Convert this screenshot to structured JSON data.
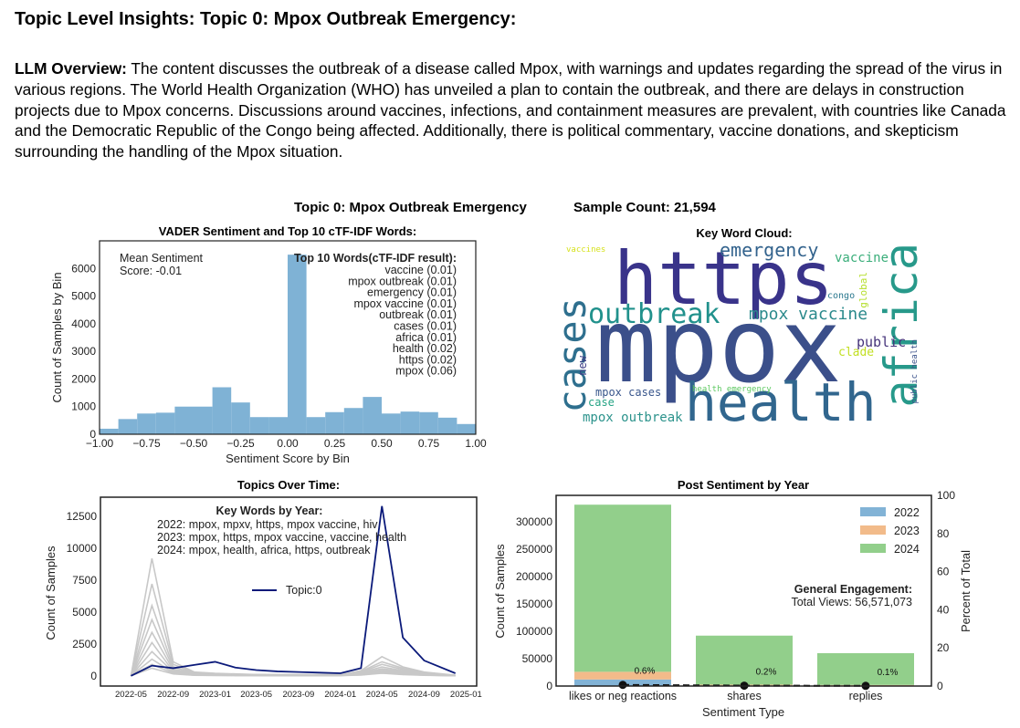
{
  "page": {
    "heading": "Topic Level Insights: Topic 0: Mpox Outbreak Emergency:",
    "overview_label": "LLM Overview:",
    "overview_text": "The content discusses the outbreak of a disease called Mpox, with warnings and updates regarding the spread of the virus in various regions. The World Health Organization (WHO) has unveiled a plan to contain the outbreak, and there are delays in construction projects due to Mpox concerns. Discussions around vaccines, infections, and containment measures are prevalent, with countries like Canada and the Democratic Republic of the Congo being affected. Additionally, there is political commentary, vaccine donations, and skepticism surrounding the handling of the Mpox situation.",
    "figure_title": "Topic 0: Mpox Outbreak Emergency",
    "sample_count": "Sample Count: 21,594"
  },
  "colors": {
    "hist": "#7fb2d5",
    "topic_line": "#0b1a7a",
    "bg_lines": "#c8c8c8",
    "y2022": "#82b3d6",
    "y2023": "#f2bb8a",
    "y2024": "#92cf8b"
  },
  "chart_data": [
    {
      "type": "bar",
      "title": "VADER Sentiment and Top 10 cTF-IDF Words:",
      "xlabel": "Sentiment Score by Bin",
      "ylabel": "Count of Samples by Bin",
      "xlim": [
        -1.0,
        1.0
      ],
      "ylim": [
        0,
        7000
      ],
      "x_ticks": [
        "−1.00",
        "−0.75",
        "−0.50",
        "−0.25",
        "0.00",
        "0.25",
        "0.50",
        "0.75",
        "1.00"
      ],
      "y_ticks": [
        "0",
        "1000",
        "2000",
        "3000",
        "4000",
        "5000",
        "6000"
      ],
      "bins": [
        {
          "x0": -1.0,
          "x1": -0.9,
          "y": 200
        },
        {
          "x0": -0.9,
          "x1": -0.8,
          "y": 550
        },
        {
          "x0": -0.8,
          "x1": -0.7,
          "y": 750
        },
        {
          "x0": -0.7,
          "x1": -0.6,
          "y": 780
        },
        {
          "x0": -0.6,
          "x1": -0.5,
          "y": 1000
        },
        {
          "x0": -0.5,
          "x1": -0.4,
          "y": 1000
        },
        {
          "x0": -0.4,
          "x1": -0.3,
          "y": 1700
        },
        {
          "x0": -0.3,
          "x1": -0.2,
          "y": 1150
        },
        {
          "x0": -0.2,
          "x1": -0.1,
          "y": 620
        },
        {
          "x0": -0.1,
          "x1": 0.0,
          "y": 620
        },
        {
          "x0": 0.0,
          "x1": 0.1,
          "y": 6500
        },
        {
          "x0": 0.1,
          "x1": 0.2,
          "y": 620
        },
        {
          "x0": 0.2,
          "x1": 0.3,
          "y": 800
        },
        {
          "x0": 0.3,
          "x1": 0.4,
          "y": 950
        },
        {
          "x0": 0.4,
          "x1": 0.5,
          "y": 1350
        },
        {
          "x0": 0.5,
          "x1": 0.6,
          "y": 750
        },
        {
          "x0": 0.6,
          "x1": 0.7,
          "y": 820
        },
        {
          "x0": 0.7,
          "x1": 0.8,
          "y": 800
        },
        {
          "x0": 0.8,
          "x1": 0.9,
          "y": 600
        },
        {
          "x0": 0.9,
          "x1": 1.0,
          "y": 370
        }
      ],
      "annotation": [
        "Mean Sentiment",
        "Score: -0.01"
      ],
      "words_title": "Top 10 Words(cTF-IDF result):",
      "words": [
        "vaccine (0.01)",
        "mpox outbreak (0.01)",
        "emergency (0.01)",
        "mpox vaccine (0.01)",
        "outbreak (0.01)",
        "cases (0.01)",
        "africa (0.01)",
        "health (0.02)",
        "https (0.02)",
        "mpox (0.06)"
      ]
    },
    {
      "type": "wordcloud",
      "title": "Key Word Cloud:",
      "words": [
        {
          "text": "mpox",
          "color": "#3b4f8a"
        },
        {
          "text": "https",
          "color": "#39338a"
        },
        {
          "text": "health",
          "color": "#31668e"
        },
        {
          "text": "africa",
          "color": "#27998a"
        },
        {
          "text": "cases",
          "color": "#2e6f8e"
        },
        {
          "text": "outbreak",
          "color": "#21918c"
        },
        {
          "text": "emergency",
          "color": "#33638d"
        },
        {
          "text": "mpox vaccine",
          "color": "#2b8a8c"
        },
        {
          "text": "vaccine",
          "color": "#3aae7a"
        },
        {
          "text": "public",
          "color": "#45337a"
        },
        {
          "text": "clade",
          "color": "#c2df23"
        },
        {
          "text": "mpox cases",
          "color": "#39568c"
        },
        {
          "text": "case",
          "color": "#26a485"
        },
        {
          "text": "mpox outbreak",
          "color": "#2c938c"
        },
        {
          "text": "new",
          "color": "#3b3c86"
        },
        {
          "text": "vaccines",
          "color": "#d6e21c"
        },
        {
          "text": "congo",
          "color": "#2a788e"
        },
        {
          "text": "global",
          "color": "#b5de2b"
        },
        {
          "text": "health emergency",
          "color": "#5ec962"
        },
        {
          "text": "public health",
          "color": "#3b528b"
        }
      ]
    },
    {
      "type": "line",
      "title": "Topics Over Time:",
      "xlabel": "",
      "ylabel": "Count of Samples",
      "ylim": [
        -800,
        14000
      ],
      "x": [
        "2022-05",
        "2022-07",
        "2022-09",
        "2022-11",
        "2023-01",
        "2023-03",
        "2023-05",
        "2023-07",
        "2023-09",
        "2023-11",
        "2024-01",
        "2024-03",
        "2024-05",
        "2024-07",
        "2024-09",
        "2024-12"
      ],
      "x_ticks": [
        "2022-05",
        "2022-09",
        "2023-01",
        "2023-05",
        "2023-09",
        "2024-01",
        "2024-05",
        "2024-09",
        "2025-01"
      ],
      "y_ticks": [
        "0",
        "2500",
        "5000",
        "7500",
        "10000",
        "12500"
      ],
      "series": [
        {
          "name": "Topic:0",
          "values": [
            0,
            800,
            600,
            850,
            1100,
            650,
            450,
            350,
            300,
            250,
            200,
            600,
            13300,
            3000,
            1200,
            200
          ]
        }
      ],
      "background_series": [
        [
          0,
          9200,
          1100,
          300,
          200,
          150,
          100,
          100,
          100,
          100,
          100,
          400,
          1500,
          700,
          300,
          50
        ],
        [
          0,
          7200,
          900,
          250,
          150,
          120,
          100,
          90,
          80,
          80,
          90,
          350,
          1100,
          600,
          250,
          40
        ],
        [
          0,
          5500,
          700,
          200,
          120,
          100,
          80,
          70,
          70,
          70,
          80,
          300,
          900,
          500,
          200,
          30
        ],
        [
          0,
          4400,
          550,
          150,
          100,
          80,
          70,
          60,
          60,
          60,
          70,
          250,
          700,
          400,
          150,
          30
        ],
        [
          0,
          3400,
          450,
          120,
          80,
          70,
          60,
          50,
          50,
          50,
          60,
          200,
          550,
          350,
          120,
          20
        ],
        [
          0,
          2600,
          350,
          100,
          70,
          60,
          50,
          40,
          40,
          40,
          50,
          150,
          450,
          300,
          100,
          20
        ],
        [
          0,
          1900,
          300,
          80,
          60,
          50,
          40,
          30,
          30,
          30,
          40,
          120,
          350,
          250,
          80,
          10
        ],
        [
          0,
          1300,
          250,
          60,
          50,
          40,
          30,
          30,
          30,
          30,
          30,
          100,
          300,
          200,
          60,
          10
        ],
        [
          0,
          900,
          200,
          50,
          40,
          30,
          30,
          20,
          20,
          20,
          30,
          80,
          250,
          150,
          50,
          10
        ],
        [
          0,
          600,
          150,
          40,
          30,
          20,
          20,
          20,
          20,
          20,
          20,
          60,
          200,
          100,
          40,
          10
        ]
      ],
      "legend_position": "center",
      "annotation_title": "Key Words by Year:",
      "annotation_lines": [
        "2022: mpox, mpxv, https, mpox vaccine, hiv",
        "2023: mpox, https, mpox vaccine, vaccine, health",
        "2024: mpox, health, africa, https, outbreak"
      ]
    },
    {
      "type": "bar",
      "stacked": true,
      "title": "Post Sentiment by Year",
      "xlabel": "Sentiment Type",
      "ylabel": "Count of Samples",
      "y2label": "Percent of Total",
      "categories": [
        "likes or neg reactions",
        "shares",
        "replies"
      ],
      "ylim": [
        0,
        348000
      ],
      "y2lim": [
        0,
        100
      ],
      "y_ticks": [
        "0",
        "50000",
        "100000",
        "150000",
        "200000",
        "250000",
        "300000"
      ],
      "y2_ticks": [
        "0",
        "20",
        "40",
        "60",
        "80",
        "100"
      ],
      "series": [
        {
          "name": "2022",
          "values": [
            12000,
            1000,
            800
          ]
        },
        {
          "name": "2023",
          "values": [
            14000,
            1500,
            1200
          ]
        },
        {
          "name": "2024",
          "values": [
            305000,
            89500,
            58000
          ]
        }
      ],
      "percent_labels": [
        "0.6%",
        "0.2%",
        "0.1%"
      ],
      "percent_values": [
        0.6,
        0.2,
        0.1
      ],
      "legend_position": "top-right",
      "engagement_title": "General Engagement:",
      "engagement_text": "Total Views: 56,571,073"
    }
  ]
}
